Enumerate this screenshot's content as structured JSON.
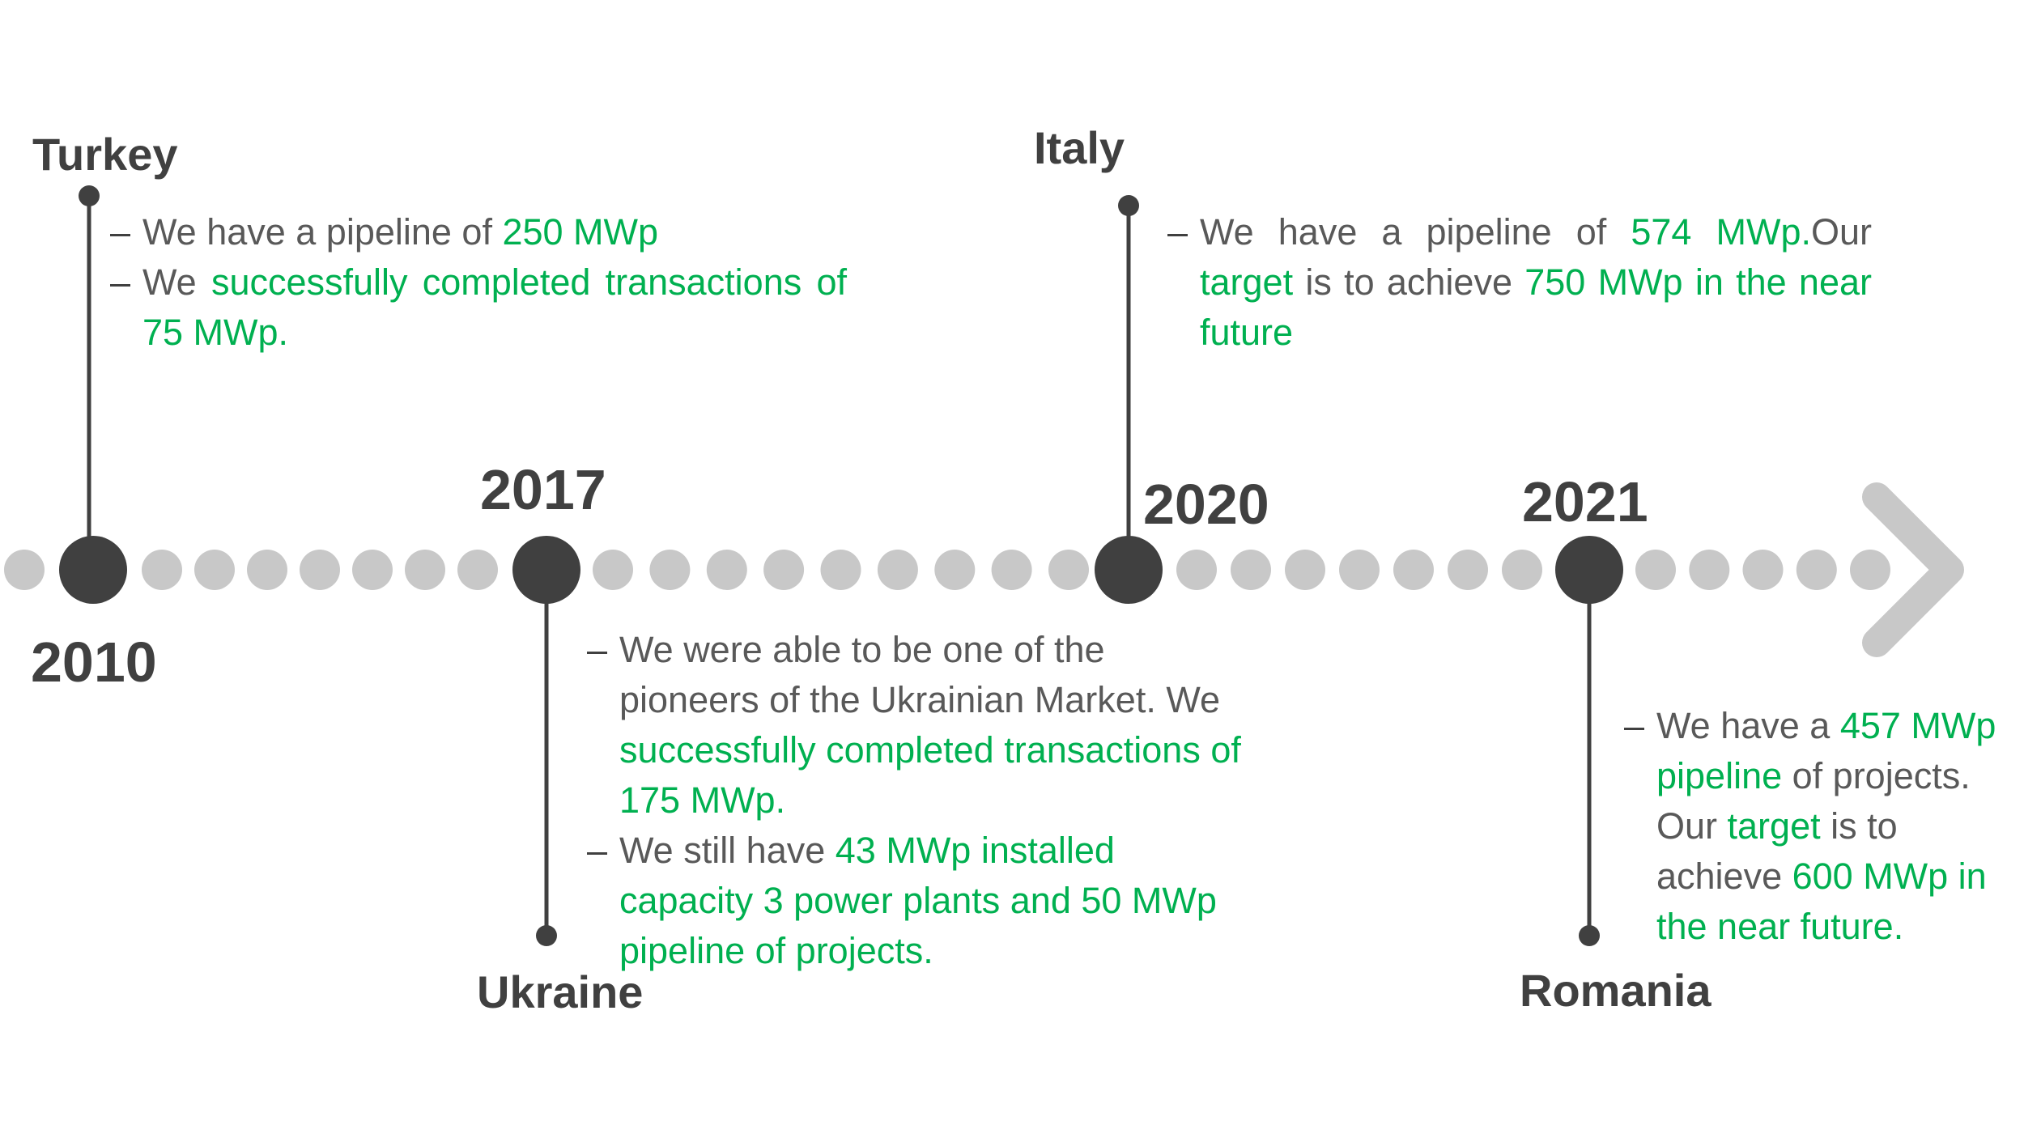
{
  "colors": {
    "dark": "#404040",
    "dots": "#c8c8c8",
    "text": "#595959",
    "accent": "#00b050"
  },
  "milestones": {
    "turkey": {
      "year": "2010",
      "country": "Turkey"
    },
    "ukraine": {
      "year": "2017",
      "country": "Ukraine"
    },
    "italy": {
      "year": "2020",
      "country": "Italy"
    },
    "romania": {
      "year": "2021",
      "country": "Romania"
    }
  },
  "descriptions": {
    "turkey": {
      "item1": {
        "a": "We have a  pipeline of ",
        "b": "250 MWp"
      },
      "item2": {
        "a": "We ",
        "b": "successfully completed transactions of 75 MWp."
      }
    },
    "italy": {
      "item1": {
        "a": "We have a  pipeline of ",
        "b": "574 MWp.",
        "c": "Our ",
        "d": "target",
        "e": " is to achieve ",
        "f": "750 MWp in the near future"
      }
    },
    "ukraine": {
      "item1": {
        "a": "We were able to be one of the pioneers of the Ukrainian Market. We ",
        "b": "successfully completed transactions of 175 MWp."
      },
      "item2": {
        "a": "We still have ",
        "b": "43 MWp installed capacity  3 power plants and 50 MWp pipeline of projects."
      }
    },
    "romania": {
      "item1": {
        "a": "We have a ",
        "b": "457 MWp pipeline",
        "c": " of projects. Our ",
        "d": "target",
        "e": " is to achieve ",
        "f": "600 MWp in the near future."
      }
    }
  }
}
